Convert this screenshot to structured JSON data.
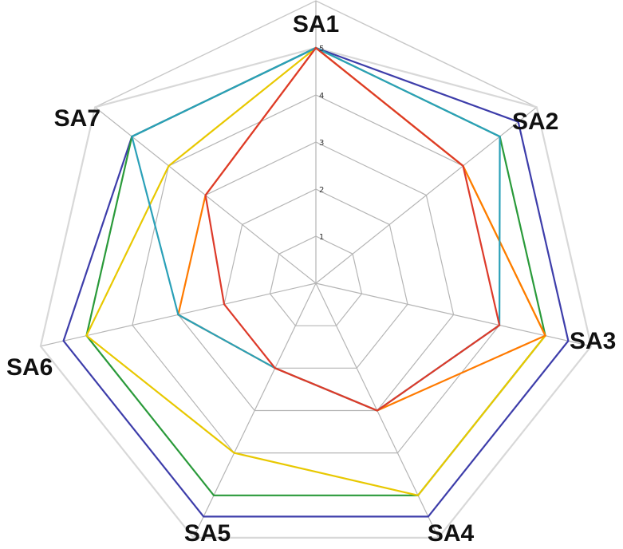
{
  "chart_data": {
    "type": "radar",
    "axes": [
      "SA1",
      "SA2",
      "SA3",
      "SA4",
      "SA5",
      "SA6",
      "SA7"
    ],
    "rlim": [
      0,
      6
    ],
    "rticks": [
      1,
      2,
      3,
      4,
      5
    ],
    "grid": true,
    "series": [
      {
        "color": "#d8d8d8",
        "values": [
          5,
          6,
          6,
          6,
          6,
          6,
          6
        ]
      },
      {
        "color": "#3d3daa",
        "values": [
          5,
          5.5,
          5.5,
          5.5,
          5.5,
          5.5,
          5
        ]
      },
      {
        "color": "#2a9a3a",
        "values": [
          5,
          5,
          5,
          5,
          5,
          5,
          5
        ]
      },
      {
        "color": "#e8c800",
        "values": [
          5,
          4,
          5,
          5,
          4,
          5,
          4
        ]
      },
      {
        "color": "#ff7a00",
        "values": [
          5,
          4,
          5,
          3,
          2,
          3,
          3
        ]
      },
      {
        "color": "#2aa0b8",
        "values": [
          5,
          5,
          4,
          3,
          2,
          3,
          5
        ]
      },
      {
        "color": "#dd3a2a",
        "values": [
          5,
          4,
          4,
          3,
          2,
          2,
          3
        ]
      }
    ]
  }
}
